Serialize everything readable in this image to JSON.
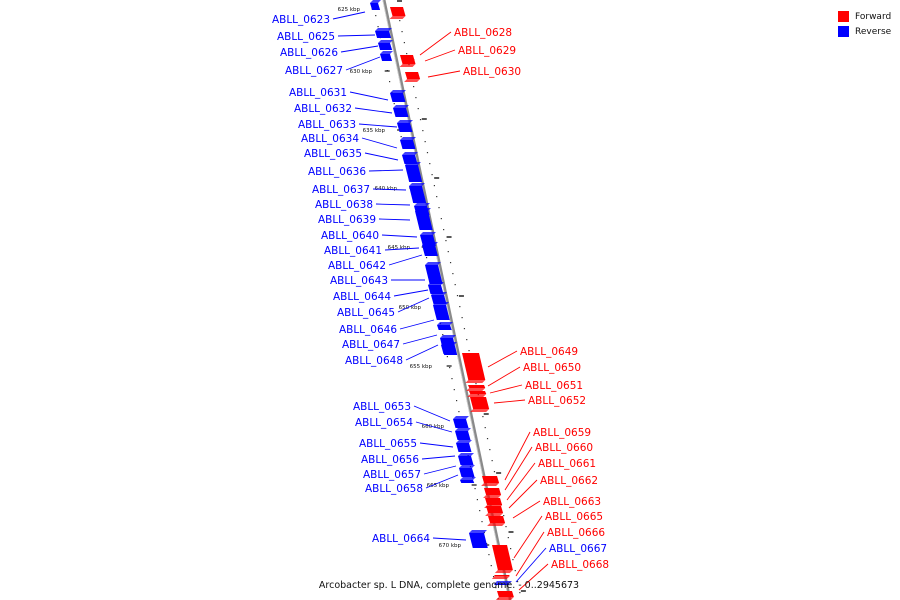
{
  "legend": [
    {
      "label": "Forward",
      "color": "#ff0000"
    },
    {
      "label": "Reverse",
      "color": "#0000ff"
    }
  ],
  "colors": {
    "forward": "#ff0000",
    "reverse": "#0000ff",
    "backbone": "#8a8a8a"
  },
  "caption": "Arcobacter sp. L DNA, complete genome. - 0..2945673",
  "scale_labels": [
    "625 kbp",
    "630 kbp",
    "635 kbp",
    "640 kbp",
    "645 kbp",
    "650 kbp",
    "655 kbp",
    "660 kbp",
    "665 kbp",
    "670 kbp"
  ],
  "genes": [
    {
      "label": "ABLL_0623",
      "strand": "reverse"
    },
    {
      "label": "ABLL_0625",
      "strand": "reverse"
    },
    {
      "label": "ABLL_0626",
      "strand": "reverse"
    },
    {
      "label": "ABLL_0627",
      "strand": "reverse"
    },
    {
      "label": "ABLL_0628",
      "strand": "forward"
    },
    {
      "label": "ABLL_0629",
      "strand": "forward"
    },
    {
      "label": "ABLL_0630",
      "strand": "forward"
    },
    {
      "label": "ABLL_0631",
      "strand": "reverse"
    },
    {
      "label": "ABLL_0632",
      "strand": "reverse"
    },
    {
      "label": "ABLL_0633",
      "strand": "reverse"
    },
    {
      "label": "ABLL_0634",
      "strand": "reverse"
    },
    {
      "label": "ABLL_0635",
      "strand": "reverse"
    },
    {
      "label": "ABLL_0636",
      "strand": "reverse"
    },
    {
      "label": "ABLL_0637",
      "strand": "reverse"
    },
    {
      "label": "ABLL_0638",
      "strand": "reverse"
    },
    {
      "label": "ABLL_0639",
      "strand": "reverse"
    },
    {
      "label": "ABLL_0640",
      "strand": "reverse"
    },
    {
      "label": "ABLL_0641",
      "strand": "reverse"
    },
    {
      "label": "ABLL_0642",
      "strand": "reverse"
    },
    {
      "label": "ABLL_0643",
      "strand": "reverse"
    },
    {
      "label": "ABLL_0644",
      "strand": "reverse"
    },
    {
      "label": "ABLL_0645",
      "strand": "reverse"
    },
    {
      "label": "ABLL_0646",
      "strand": "reverse"
    },
    {
      "label": "ABLL_0647",
      "strand": "reverse"
    },
    {
      "label": "ABLL_0648",
      "strand": "reverse"
    },
    {
      "label": "ABLL_0649",
      "strand": "forward"
    },
    {
      "label": "ABLL_0650",
      "strand": "forward"
    },
    {
      "label": "ABLL_0651",
      "strand": "forward"
    },
    {
      "label": "ABLL_0652",
      "strand": "forward"
    },
    {
      "label": "ABLL_0653",
      "strand": "reverse"
    },
    {
      "label": "ABLL_0654",
      "strand": "reverse"
    },
    {
      "label": "ABLL_0655",
      "strand": "reverse"
    },
    {
      "label": "ABLL_0656",
      "strand": "reverse"
    },
    {
      "label": "ABLL_0657",
      "strand": "reverse"
    },
    {
      "label": "ABLL_0658",
      "strand": "reverse"
    },
    {
      "label": "ABLL_0659",
      "strand": "forward"
    },
    {
      "label": "ABLL_0660",
      "strand": "forward"
    },
    {
      "label": "ABLL_0661",
      "strand": "forward"
    },
    {
      "label": "ABLL_0662",
      "strand": "forward"
    },
    {
      "label": "ABLL_0663",
      "strand": "forward"
    },
    {
      "label": "ABLL_0664",
      "strand": "reverse"
    },
    {
      "label": "ABLL_0665",
      "strand": "forward"
    },
    {
      "label": "ABLL_0666",
      "strand": "forward"
    },
    {
      "label": "ABLL_0667",
      "strand": "reverse"
    },
    {
      "label": "ABLL_0668",
      "strand": "forward"
    }
  ]
}
